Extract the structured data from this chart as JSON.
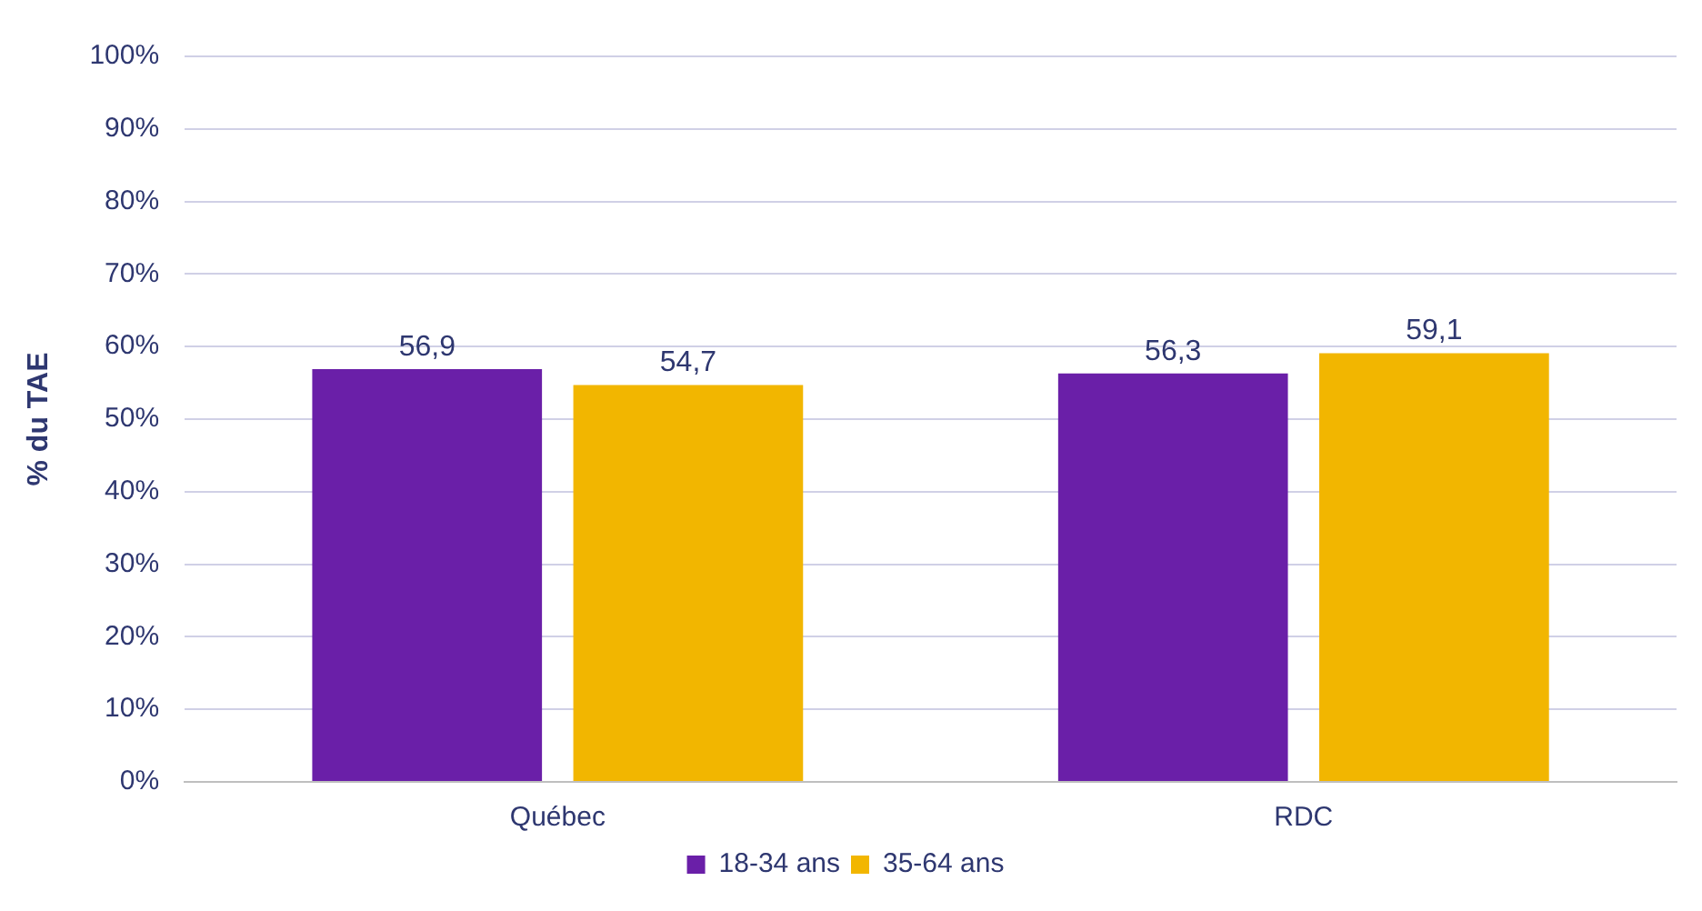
{
  "chart_data": {
    "type": "bar",
    "ylabel": "% du TAE",
    "categories": [
      "Québec",
      "RDC"
    ],
    "series": [
      {
        "name": "18-34 ans",
        "color": "#6a1fa8",
        "values": [
          56.9,
          56.3
        ],
        "value_labels": [
          "56,9",
          "56,3"
        ]
      },
      {
        "name": "35-64 ans",
        "color": "#f2b600",
        "values": [
          54.7,
          59.1
        ],
        "value_labels": [
          "54,7",
          "59,1"
        ]
      }
    ],
    "ylim": [
      0,
      100
    ],
    "yticks": [
      {
        "value": 0,
        "label": "0%"
      },
      {
        "value": 10,
        "label": "10%"
      },
      {
        "value": 20,
        "label": "20%"
      },
      {
        "value": 30,
        "label": "30%"
      },
      {
        "value": 40,
        "label": "40%"
      },
      {
        "value": 50,
        "label": "50%"
      },
      {
        "value": 60,
        "label": "60%"
      },
      {
        "value": 70,
        "label": "70%"
      },
      {
        "value": 80,
        "label": "80%"
      },
      {
        "value": 90,
        "label": "90%"
      },
      {
        "value": 100,
        "label": "100%"
      }
    ],
    "grid": "y",
    "legend": "bottom"
  }
}
